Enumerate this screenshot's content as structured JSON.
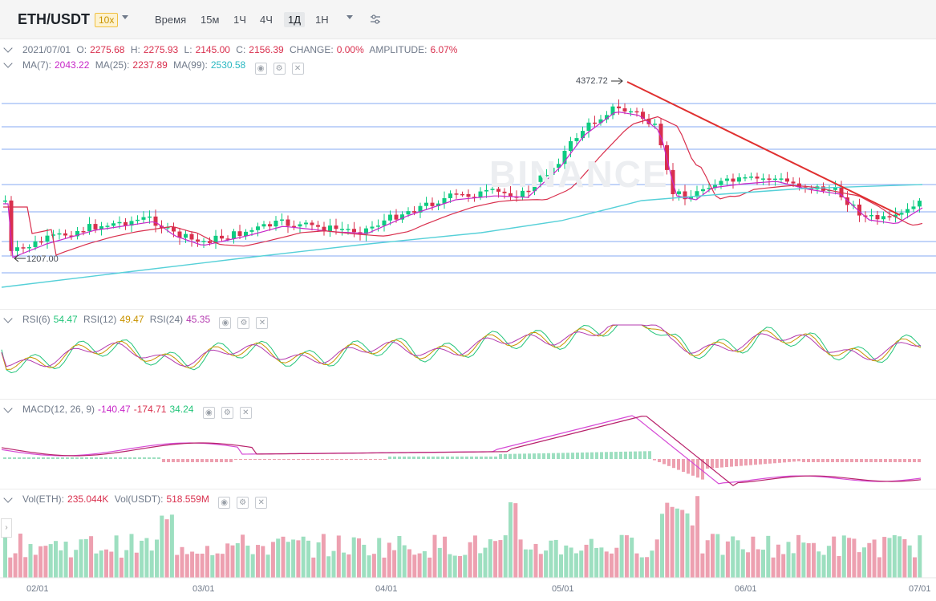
{
  "header": {
    "pair": "ETH/USDT",
    "leverage": "10x",
    "timeframes": [
      "Время",
      "15м",
      "1Ч",
      "4Ч",
      "1Д",
      "1Н"
    ],
    "active_timeframe": "1Д"
  },
  "ohlc_row": {
    "date": "2021/07/01",
    "open_label": "O:",
    "open": "2275.68",
    "high_label": "H:",
    "high": "2275.93",
    "low_label": "L:",
    "low": "2145.00",
    "close_label": "C:",
    "close": "2156.39",
    "change_label": "CHANGE:",
    "change": "0.00%",
    "amplitude_label": "AMPLITUDE:",
    "amplitude": "6.07%"
  },
  "ma_row": {
    "ma7_label": "MA(7):",
    "ma7": "2043.22",
    "ma25_label": "MA(25):",
    "ma25": "2237.89",
    "ma99_label": "MA(99):",
    "ma99": "2530.58"
  },
  "rsi_row": {
    "rsi6_label": "RSI(6)",
    "rsi6": "54.47",
    "rsi12_label": "RSI(12)",
    "rsi12": "49.47",
    "rsi24_label": "RSI(24)",
    "rsi24": "45.35"
  },
  "macd_row": {
    "label": "MACD(12, 26, 9)",
    "dif": "-140.47",
    "dea": "-174.71",
    "hist": "34.24"
  },
  "vol_row": {
    "vol_eth_label": "Vol(ETH):",
    "vol_eth": "235.044K",
    "vol_usdt_label": "Vol(USDT):",
    "vol_usdt": "518.559M"
  },
  "chart": {
    "high_marker": "4372.72",
    "low_marker": "1207.00",
    "watermark": "BINANCE",
    "x_labels": [
      "02/01",
      "03/01",
      "04/01",
      "05/01",
      "06/01",
      "07/01"
    ]
  },
  "colors": {
    "up": "#0ecb81",
    "down": "#d9304e",
    "hline": "#5b8def",
    "trend": "#e03030"
  }
}
